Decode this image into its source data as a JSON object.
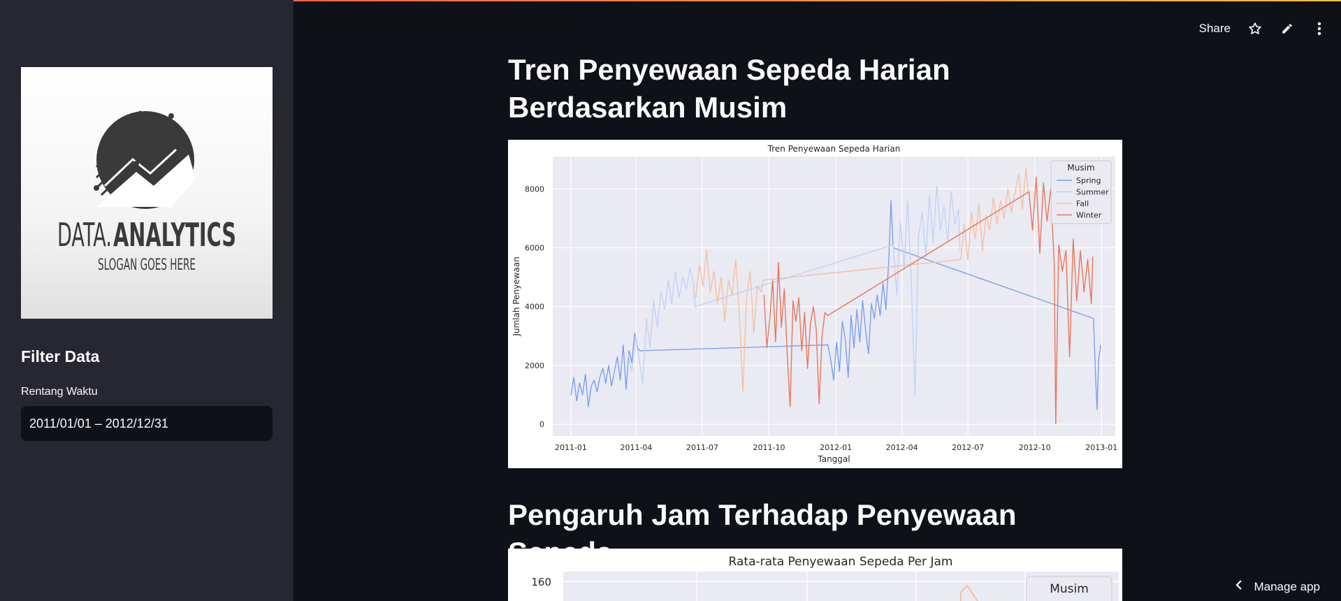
{
  "sidebar": {
    "logo": {
      "title_part1": "DATA.",
      "title_part2": "ANALYTICS",
      "slogan": "SLOGAN GOES HERE"
    },
    "filter_title": "Filter Data",
    "range_label": "Rentang Waktu",
    "range_value": "2011/01/01 – 2012/12/31"
  },
  "toolbar": {
    "share_label": "Share",
    "icons": [
      "star-icon",
      "pencil-icon",
      "kebab-menu-icon"
    ]
  },
  "main": {
    "heading1": "Tren Penyewaan Sepeda Harian Berdasarkan Musim",
    "heading2": "Pengaruh Jam Terhadap Penyewaan Sepeda"
  },
  "footer": {
    "manage_label": "Manage app"
  },
  "chart_data": [
    {
      "type": "line",
      "title": "Tren Penyewaan Sepeda Harian",
      "xlabel": "Tanggal",
      "ylabel": "Jumlah Penyewaan",
      "xticks": [
        "2011-01",
        "2011-04",
        "2011-07",
        "2011-10",
        "2012-01",
        "2012-04",
        "2012-07",
        "2012-10",
        "2013-01"
      ],
      "yticks": [
        0,
        2000,
        4000,
        6000,
        8000
      ],
      "ylim": [
        -400,
        9100
      ],
      "xlim": [
        "2010-12-07",
        "2013-01-20"
      ],
      "grid": true,
      "legend": {
        "title": "Musim",
        "placement": "top-right"
      },
      "series": [
        {
          "name": "Spring",
          "color": "#7b9ff0",
          "points": [
            [
              "2011-01-01",
              985
            ],
            [
              "2011-01-05",
              1600
            ],
            [
              "2011-01-09",
              800
            ],
            [
              "2011-01-13",
              1400
            ],
            [
              "2011-01-17",
              1000
            ],
            [
              "2011-01-21",
              1700
            ],
            [
              "2011-01-25",
              600
            ],
            [
              "2011-01-29",
              1300
            ],
            [
              "2011-02-02",
              1500
            ],
            [
              "2011-02-06",
              1100
            ],
            [
              "2011-02-10",
              1600
            ],
            [
              "2011-02-14",
              1900
            ],
            [
              "2011-02-18",
              1400
            ],
            [
              "2011-02-22",
              2000
            ],
            [
              "2011-02-26",
              1300
            ],
            [
              "2011-03-02",
              1800
            ],
            [
              "2011-03-06",
              2300
            ],
            [
              "2011-03-10",
              1500
            ],
            [
              "2011-03-14",
              2700
            ],
            [
              "2011-03-18",
              1200
            ],
            [
              "2011-03-22",
              2500
            ],
            [
              "2011-03-26",
              2100
            ],
            [
              "2011-03-30",
              3100
            ],
            [
              "2011-04-03",
              2600
            ],
            [
              "2011-04-06",
              2500
            ],
            [
              "2011-12-21",
              2700
            ],
            [
              "2011-12-25",
              2200
            ],
            [
              "2011-12-29",
              1500
            ],
            [
              "2012-01-02",
              2800
            ],
            [
              "2012-01-06",
              1800
            ],
            [
              "2012-01-10",
              3500
            ],
            [
              "2012-01-14",
              2900
            ],
            [
              "2012-01-18",
              1600
            ],
            [
              "2012-01-22",
              3700
            ],
            [
              "2012-01-26",
              2600
            ],
            [
              "2012-01-30",
              3900
            ],
            [
              "2012-02-03",
              2800
            ],
            [
              "2012-02-07",
              4200
            ],
            [
              "2012-02-11",
              3200
            ],
            [
              "2012-02-15",
              2400
            ],
            [
              "2012-02-19",
              4100
            ],
            [
              "2012-02-23",
              3600
            ],
            [
              "2012-02-27",
              4400
            ],
            [
              "2012-03-02",
              3700
            ],
            [
              "2012-03-06",
              4800
            ],
            [
              "2012-03-10",
              3900
            ],
            [
              "2012-03-14",
              5600
            ],
            [
              "2012-03-17",
              7600
            ],
            [
              "2012-03-20",
              6000
            ],
            [
              "2012-12-21",
              3600
            ],
            [
              "2012-12-24",
              1500
            ],
            [
              "2012-12-26",
              500
            ],
            [
              "2012-12-28",
              2200
            ],
            [
              "2012-12-31",
              2700
            ]
          ]
        },
        {
          "name": "Summer",
          "color": "#bfd3f6",
          "points": [
            [
              "2011-03-21",
              2400
            ],
            [
              "2011-03-26",
              1800
            ],
            [
              "2011-03-31",
              3000
            ],
            [
              "2011-04-05",
              2200
            ],
            [
              "2011-04-10",
              1400
            ],
            [
              "2011-04-15",
              3600
            ],
            [
              "2011-04-20",
              2600
            ],
            [
              "2011-04-25",
              4200
            ],
            [
              "2011-04-30",
              3300
            ],
            [
              "2011-05-05",
              4500
            ],
            [
              "2011-05-10",
              3900
            ],
            [
              "2011-05-15",
              4900
            ],
            [
              "2011-05-20",
              4100
            ],
            [
              "2011-05-25",
              5200
            ],
            [
              "2011-05-30",
              4300
            ],
            [
              "2011-06-04",
              5000
            ],
            [
              "2011-06-09",
              4600
            ],
            [
              "2011-06-14",
              5300
            ],
            [
              "2011-06-19",
              4800
            ],
            [
              "2011-06-21",
              4000
            ],
            [
              "2012-03-20",
              6100
            ],
            [
              "2012-03-25",
              4400
            ],
            [
              "2012-03-30",
              6900
            ],
            [
              "2012-04-04",
              5300
            ],
            [
              "2012-04-09",
              7600
            ],
            [
              "2012-04-14",
              4800
            ],
            [
              "2012-04-19",
              1000
            ],
            [
              "2012-04-24",
              6400
            ],
            [
              "2012-04-29",
              7200
            ],
            [
              "2012-05-04",
              5700
            ],
            [
              "2012-05-09",
              7800
            ],
            [
              "2012-05-14",
              6200
            ],
            [
              "2012-05-19",
              8100
            ],
            [
              "2012-05-24",
              6600
            ],
            [
              "2012-05-29",
              7400
            ],
            [
              "2012-06-03",
              6200
            ],
            [
              "2012-06-08",
              7900
            ],
            [
              "2012-06-13",
              6800
            ],
            [
              "2012-06-18",
              7300
            ],
            [
              "2012-06-20",
              5900
            ]
          ]
        },
        {
          "name": "Fall",
          "color": "#f5c0a5",
          "points": [
            [
              "2011-06-22",
              4300
            ],
            [
              "2011-06-27",
              5400
            ],
            [
              "2011-07-02",
              4700
            ],
            [
              "2011-07-07",
              5900
            ],
            [
              "2011-07-12",
              4500
            ],
            [
              "2011-07-17",
              5200
            ],
            [
              "2011-07-22",
              4100
            ],
            [
              "2011-07-27",
              5000
            ],
            [
              "2011-08-01",
              3500
            ],
            [
              "2011-08-06",
              4900
            ],
            [
              "2011-08-11",
              4400
            ],
            [
              "2011-08-16",
              5600
            ],
            [
              "2011-08-21",
              3800
            ],
            [
              "2011-08-26",
              1100
            ],
            [
              "2011-08-31",
              4300
            ],
            [
              "2011-09-05",
              5200
            ],
            [
              "2011-09-10",
              3100
            ],
            [
              "2011-09-15",
              4700
            ],
            [
              "2011-09-20",
              4500
            ],
            [
              "2011-09-23",
              4900
            ],
            [
              "2012-06-21",
              5600
            ],
            [
              "2012-06-26",
              6800
            ],
            [
              "2012-07-01",
              5600
            ],
            [
              "2012-07-06",
              7200
            ],
            [
              "2012-07-11",
              6300
            ],
            [
              "2012-07-16",
              7500
            ],
            [
              "2012-07-21",
              5900
            ],
            [
              "2012-07-26",
              7100
            ],
            [
              "2012-07-31",
              6600
            ],
            [
              "2012-08-05",
              7700
            ],
            [
              "2012-08-10",
              6800
            ],
            [
              "2012-08-15",
              7600
            ],
            [
              "2012-08-20",
              7000
            ],
            [
              "2012-08-25",
              8000
            ],
            [
              "2012-08-30",
              7200
            ],
            [
              "2012-09-04",
              7900
            ],
            [
              "2012-09-09",
              8500
            ],
            [
              "2012-09-14",
              7300
            ],
            [
              "2012-09-19",
              8700
            ],
            [
              "2012-09-22",
              7900
            ]
          ]
        },
        {
          "name": "Winter",
          "color": "#e8765a",
          "points": [
            [
              "2011-09-24",
              4400
            ],
            [
              "2011-09-28",
              2600
            ],
            [
              "2011-10-02",
              3600
            ],
            [
              "2011-10-06",
              4900
            ],
            [
              "2011-10-10",
              2800
            ],
            [
              "2011-10-14",
              5500
            ],
            [
              "2011-10-18",
              3300
            ],
            [
              "2011-10-22",
              4600
            ],
            [
              "2011-10-26",
              2400
            ],
            [
              "2011-10-30",
              600
            ],
            [
              "2011-11-03",
              4200
            ],
            [
              "2011-11-07",
              3500
            ],
            [
              "2011-11-11",
              4300
            ],
            [
              "2011-11-15",
              2500
            ],
            [
              "2011-11-19",
              3800
            ],
            [
              "2011-11-23",
              1900
            ],
            [
              "2011-11-27",
              3400
            ],
            [
              "2011-12-01",
              4000
            ],
            [
              "2011-12-05",
              3200
            ],
            [
              "2011-12-09",
              700
            ],
            [
              "2011-12-13",
              3000
            ],
            [
              "2011-12-17",
              3800
            ],
            [
              "2011-12-21",
              3700
            ],
            [
              "2012-09-23",
              7900
            ],
            [
              "2012-09-28",
              6600
            ],
            [
              "2012-10-03",
              8400
            ],
            [
              "2012-10-08",
              5800
            ],
            [
              "2012-10-13",
              8200
            ],
            [
              "2012-10-18",
              6900
            ],
            [
              "2012-10-23",
              8000
            ],
            [
              "2012-10-28",
              5400
            ],
            [
              "2012-10-30",
              20
            ],
            [
              "2012-11-03",
              6100
            ],
            [
              "2012-11-08",
              5200
            ],
            [
              "2012-11-13",
              5900
            ],
            [
              "2012-11-18",
              2300
            ],
            [
              "2012-11-23",
              6300
            ],
            [
              "2012-11-28",
              4200
            ],
            [
              "2012-12-03",
              5900
            ],
            [
              "2012-12-08",
              4500
            ],
            [
              "2012-12-13",
              5600
            ],
            [
              "2012-12-18",
              4100
            ],
            [
              "2012-12-20",
              5700
            ]
          ]
        }
      ]
    },
    {
      "type": "line",
      "title": "Rata-rata Penyewaan Sepeda Per Jam",
      "yticks": [
        160
      ],
      "legend": {
        "title": "Musim",
        "placement": "top-right"
      }
    }
  ]
}
